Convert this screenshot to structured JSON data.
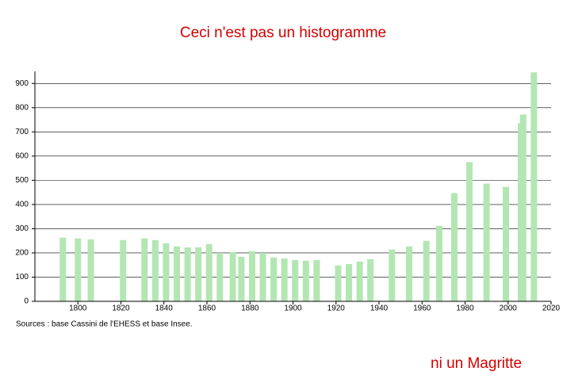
{
  "chart_data": {
    "type": "bar",
    "title": "Ceci n'est pas un histogramme",
    "annotations": [
      "Sources : base Cassini de l'EHESS et base Insee.",
      "ni un Magritte"
    ],
    "x": [
      1793,
      1800,
      1806,
      1821,
      1831,
      1836,
      1841,
      1846,
      1851,
      1856,
      1861,
      1866,
      1872,
      1876,
      1881,
      1886,
      1891,
      1896,
      1901,
      1906,
      1911,
      1921,
      1926,
      1931,
      1936,
      1946,
      1954,
      1962,
      1968,
      1975,
      1982,
      1990,
      1999,
      2006,
      2007,
      2012
    ],
    "values": [
      263,
      260,
      256,
      253,
      260,
      253,
      240,
      227,
      223,
      223,
      237,
      200,
      204,
      184,
      207,
      200,
      181,
      177,
      171,
      168,
      171,
      148,
      154,
      164,
      174,
      214,
      227,
      250,
      312,
      447,
      575,
      486,
      473,
      736,
      772,
      946
    ],
    "color": "#b3e6b3",
    "xlim": [
      1780,
      2020
    ],
    "xticks": [
      1800,
      1820,
      1840,
      1860,
      1880,
      1900,
      1920,
      1940,
      1960,
      1980,
      2000,
      2020
    ],
    "ylim": [
      0,
      950
    ],
    "yticks": [
      0,
      100,
      200,
      300,
      400,
      500,
      600,
      700,
      800,
      900
    ],
    "grid": true
  }
}
